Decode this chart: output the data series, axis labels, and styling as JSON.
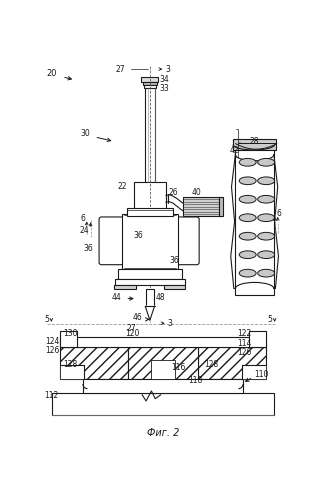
{
  "bg": "#ffffff",
  "lc": "#1a1a1a",
  "gray": "#aaaaaa",
  "lgray": "#cccccc",
  "fig_caption": "Фиг. 2"
}
